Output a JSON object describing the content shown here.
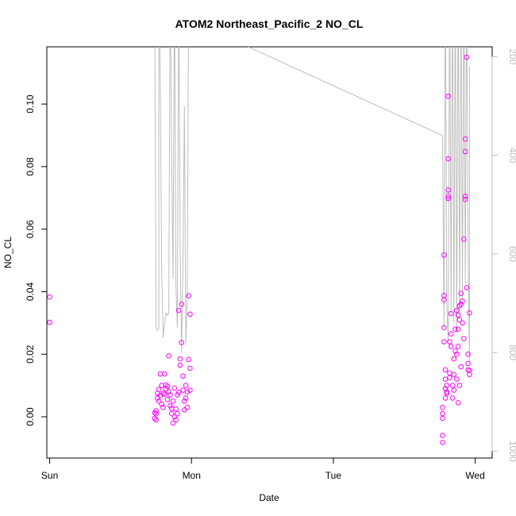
{
  "chart_data": {
    "type": "scatter",
    "title": "ATOM2 Northeast_Pacific_2 NO_CL",
    "xlabel": "Date",
    "ylabel": "NO_CL",
    "xlim": [
      -0.02,
      3.12
    ],
    "ylim": [
      -0.0132,
      0.1183
    ],
    "y2lim": [
      1014,
      180
    ],
    "x_ticks": [
      {
        "value": 0,
        "label": "Sun"
      },
      {
        "value": 1,
        "label": "Mon"
      },
      {
        "value": 2,
        "label": "Tue"
      },
      {
        "value": 3,
        "label": "Wed"
      }
    ],
    "y_ticks": [
      {
        "value": 0.0,
        "label": "0.00"
      },
      {
        "value": 0.02,
        "label": "0.02"
      },
      {
        "value": 0.04,
        "label": "0.04"
      },
      {
        "value": 0.06,
        "label": "0.06"
      },
      {
        "value": 0.08,
        "label": "0.08"
      },
      {
        "value": 0.1,
        "label": "0.10"
      }
    ],
    "y2_ticks": [
      {
        "value": 200,
        "label": "200"
      },
      {
        "value": 400,
        "label": "400"
      },
      {
        "value": 600,
        "label": "600"
      },
      {
        "value": 800,
        "label": "800"
      },
      {
        "value": 1000,
        "label": "1000"
      }
    ],
    "series": [
      {
        "color": "#ff00ff",
        "points": [
          [
            0.0,
            0.0383
          ],
          [
            0.0,
            0.0302
          ],
          [
            0.74,
            0.0013
          ],
          [
            0.74,
            -0.0005
          ],
          [
            0.75,
            0.001
          ],
          [
            0.75,
            -0.001
          ],
          [
            0.75,
            0.0019
          ],
          [
            0.76,
            0.0075
          ],
          [
            0.76,
            0.006
          ],
          [
            0.77,
            0.0087
          ],
          [
            0.77,
            0.005
          ],
          [
            0.78,
            0.0137
          ],
          [
            0.78,
            0.0068
          ],
          [
            0.79,
            0.01
          ],
          [
            0.79,
            0.004
          ],
          [
            0.8,
            0.003
          ],
          [
            0.8,
            0.0075
          ],
          [
            0.81,
            0.0137
          ],
          [
            0.81,
            0.0072
          ],
          [
            0.82,
            0.0102
          ],
          [
            0.82,
            0.009
          ],
          [
            0.83,
            0.0097
          ],
          [
            0.83,
            0.0055
          ],
          [
            0.84,
            0.0195
          ],
          [
            0.84,
            0.008
          ],
          [
            0.85,
            0.007
          ],
          [
            0.85,
            0.0035
          ],
          [
            0.86,
            0.0027
          ],
          [
            0.86,
            0.001
          ],
          [
            0.87,
            -0.002
          ],
          [
            0.87,
            0.005
          ],
          [
            0.88,
            0.0092
          ],
          [
            0.88,
            0.0
          ],
          [
            0.89,
            0.0025
          ],
          [
            0.89,
            -0.001
          ],
          [
            0.9,
            0.007
          ],
          [
            0.9,
            0.001
          ],
          [
            0.91,
            0.0078
          ],
          [
            0.91,
            0.034
          ],
          [
            0.92,
            0.0185
          ],
          [
            0.92,
            0.0165
          ],
          [
            0.93,
            0.036
          ],
          [
            0.93,
            0.0237
          ],
          [
            0.94,
            0.013
          ],
          [
            0.94,
            0.0085
          ],
          [
            0.95,
            0.005
          ],
          [
            0.95,
            0.0022
          ],
          [
            0.96,
            0.006
          ],
          [
            0.96,
            0.01
          ],
          [
            0.97,
            0.008
          ],
          [
            0.97,
            0.003
          ],
          [
            0.98,
            0.0183
          ],
          [
            0.98,
            0.0387
          ],
          [
            0.99,
            0.0328
          ],
          [
            0.99,
            0.0155
          ],
          [
            0.99,
            0.0085
          ],
          [
            2.77,
            -0.006
          ],
          [
            2.77,
            -0.0082
          ],
          [
            2.77,
            0.003
          ],
          [
            2.77,
            0.001
          ],
          [
            2.77,
            -0.0005
          ],
          [
            2.78,
            0.0285
          ],
          [
            2.78,
            0.024
          ],
          [
            2.78,
            0.0388
          ],
          [
            2.78,
            0.0374
          ],
          [
            2.78,
            0.0517
          ],
          [
            2.79,
            0.015
          ],
          [
            2.79,
            0.012
          ],
          [
            2.79,
            0.009
          ],
          [
            2.79,
            0.006
          ],
          [
            2.8,
            0.008
          ],
          [
            2.8,
            0.01
          ],
          [
            2.8,
            0.0075
          ],
          [
            2.81,
            0.1025
          ],
          [
            2.81,
            0.0825
          ],
          [
            2.81,
            0.0725
          ],
          [
            2.81,
            0.0698
          ],
          [
            2.81,
            0.0705
          ],
          [
            2.82,
            0.024
          ],
          [
            2.82,
            0.014
          ],
          [
            2.82,
            0.0125
          ],
          [
            2.83,
            0.033
          ],
          [
            2.83,
            0.0265
          ],
          [
            2.83,
            0.0225
          ],
          [
            2.84,
            0.01
          ],
          [
            2.84,
            0.006
          ],
          [
            2.85,
            0.0185
          ],
          [
            2.85,
            0.0135
          ],
          [
            2.85,
            0.0085
          ],
          [
            2.86,
            0.028
          ],
          [
            2.86,
            0.021
          ],
          [
            2.87,
            0.034
          ],
          [
            2.87,
            0.02
          ],
          [
            2.87,
            0.012
          ],
          [
            2.88,
            0.0325
          ],
          [
            2.88,
            0.028
          ],
          [
            2.88,
            0.0225
          ],
          [
            2.88,
            0.0045
          ],
          [
            2.89,
            0.0355
          ],
          [
            2.89,
            0.031
          ],
          [
            2.89,
            0.01
          ],
          [
            2.9,
            0.0395
          ],
          [
            2.9,
            0.036
          ],
          [
            2.9,
            0.016
          ],
          [
            2.91,
            0.037
          ],
          [
            2.91,
            0.03
          ],
          [
            2.92,
            0.0568
          ],
          [
            2.92,
            0.025
          ],
          [
            2.93,
            0.0888
          ],
          [
            2.93,
            0.0848
          ],
          [
            2.93,
            0.0705
          ],
          [
            2.93,
            0.0695
          ],
          [
            2.94,
            0.115
          ],
          [
            2.94,
            0.0413
          ],
          [
            2.95,
            0.02
          ],
          [
            2.95,
            0.015
          ],
          [
            2.95,
            0.017
          ],
          [
            2.96,
            0.0332
          ],
          [
            2.96,
            0.0135
          ],
          [
            2.96,
            0.0148
          ]
        ]
      }
    ],
    "profile_line": {
      "color": "#bebebe",
      "points": [
        [
          0.74,
          30
        ],
        [
          0.75,
          750
        ],
        [
          0.76,
          755
        ],
        [
          0.77,
          750
        ],
        [
          0.77,
          30
        ],
        [
          0.78,
          250
        ],
        [
          0.79,
          640
        ],
        [
          0.8,
          760
        ],
        [
          0.8,
          770
        ],
        [
          0.81,
          740
        ],
        [
          0.82,
          720
        ],
        [
          0.83,
          725
        ],
        [
          0.84,
          720
        ],
        [
          0.85,
          30
        ],
        [
          0.86,
          400
        ],
        [
          0.87,
          650
        ],
        [
          0.88,
          40
        ],
        [
          0.89,
          660
        ],
        [
          0.9,
          750
        ],
        [
          0.91,
          30
        ],
        [
          0.92,
          580
        ],
        [
          0.93,
          800
        ],
        [
          0.94,
          620
        ],
        [
          0.95,
          300
        ],
        [
          0.96,
          780
        ],
        [
          0.97,
          690
        ],
        [
          0.98,
          30
        ],
        [
          1.4,
          180
        ],
        [
          2.77,
          360
        ],
        [
          2.78,
          750
        ],
        [
          2.79,
          30
        ],
        [
          2.8,
          700
        ],
        [
          2.81,
          780
        ],
        [
          2.82,
          40
        ],
        [
          2.83,
          720
        ],
        [
          2.84,
          30
        ],
        [
          2.85,
          740
        ],
        [
          2.86,
          40
        ],
        [
          2.87,
          760
        ],
        [
          2.88,
          30
        ],
        [
          2.89,
          720
        ],
        [
          2.9,
          40
        ],
        [
          2.91,
          700
        ],
        [
          2.92,
          40
        ],
        [
          2.93,
          660
        ],
        [
          2.94,
          30
        ],
        [
          2.95,
          600
        ],
        [
          2.96,
          820
        ],
        [
          2.96,
          220
        ]
      ]
    },
    "grid": false,
    "legend": "none"
  }
}
